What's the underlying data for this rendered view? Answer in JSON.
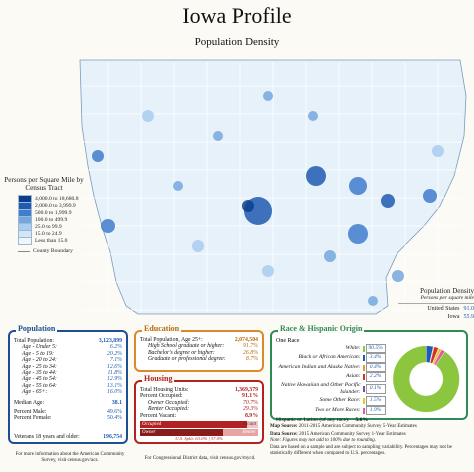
{
  "title": "Iowa Profile",
  "map_title": "Population Density",
  "legend": {
    "title": "Persons per Square Mile by Census Tract",
    "items": [
      {
        "label": "4,000.0 to 18,680.8",
        "color": "#0b3f8c"
      },
      {
        "label": "2,000.0 to 3,999.9",
        "color": "#1f5bb0"
      },
      {
        "label": "500.0 to 1,999.9",
        "color": "#3f7dcd"
      },
      {
        "label": "100.0 to 499.9",
        "color": "#74a7df"
      },
      {
        "label": "25.0 to 99.9",
        "color": "#a9cdee"
      },
      {
        "label": "15.0 to 24.9",
        "color": "#d3e6f6"
      },
      {
        "label": "Less than 15.0",
        "color": "#eef5fb"
      }
    ],
    "boundary_label": "County Boundary"
  },
  "density_summary": {
    "title": "Population Density",
    "subtitle": "Persons per square mile",
    "rows": [
      {
        "label": "United States",
        "value": "91.0"
      },
      {
        "label": "Iowa",
        "value": "55.9"
      }
    ]
  },
  "population": {
    "header": "Population",
    "total_label": "Total Population:",
    "total_value": "3,123,899",
    "rows": [
      {
        "label": "Age - Under 5:",
        "value": "6.2%"
      },
      {
        "label": "Age - 5 to 19:",
        "value": "20.2%"
      },
      {
        "label": "Age - 20 to 24:",
        "value": "7.1%"
      },
      {
        "label": "Age - 25 to 34:",
        "value": "12.6%"
      },
      {
        "label": "Age - 35 to 44:",
        "value": "11.8%"
      },
      {
        "label": "Age - 45 to 54:",
        "value": "12.9%"
      },
      {
        "label": "Age - 55 to 64:",
        "value": "13.1%"
      },
      {
        "label": "Age - 65+:",
        "value": "16.0%"
      }
    ],
    "median_label": "Median Age:",
    "median_value": "38.1",
    "male_label": "Percent Male:",
    "male_value": "49.6%",
    "female_label": "Percent Female:",
    "female_value": "50.4%",
    "veterans_label": "Veterans 18 years and older:",
    "veterans_value": "196,754"
  },
  "education": {
    "header": "Education",
    "total_label": "Total Population, Age 25+:",
    "total_value": "2,074,504",
    "rows": [
      {
        "label": "High School graduate or higher:",
        "value": "91.7%"
      },
      {
        "label": "Bachelor's degree or higher:",
        "value": "26.8%"
      },
      {
        "label": "Graduate or professional degree:",
        "value": "8.7%"
      }
    ]
  },
  "housing": {
    "header": "Housing",
    "total_label": "Total Housing Units:",
    "total_value": "1,369,379",
    "rows": [
      {
        "label": "Percent Occupied:",
        "value": "91.1%",
        "italic": false
      },
      {
        "label": "Owner Occupied:",
        "value": "70.7%",
        "italic": true
      },
      {
        "label": "Renter Occupied:",
        "value": "29.3%",
        "italic": true
      },
      {
        "label": "Percent Vacant:",
        "value": "8.9%",
        "italic": false
      }
    ],
    "bar": {
      "occupied_label": "Occupied",
      "vacant_label": "Vacant",
      "owner_label": "Owner",
      "renter_label": "Renter",
      "occupied_fraction": 0.911,
      "owner_fraction": 0.707,
      "split_text": "U.S. Split: 63.0% | 37.0%"
    }
  },
  "race": {
    "header": "Race & Hispanic Origin",
    "subheader": "One Race",
    "rows": [
      {
        "label": "White:",
        "value": "90.5%",
        "color": "#8cc63f"
      },
      {
        "label": "Black or African American:",
        "value": "3.4%",
        "color": "#1f5bb0"
      },
      {
        "label": "American Indian and Alaska Native:",
        "value": "0.4%",
        "color": "#e59b2a"
      },
      {
        "label": "Asian:",
        "value": "2.2%",
        "color": "#d0312d"
      },
      {
        "label": "Native Hawaiian and Other Pacific Islander:",
        "value": "0.1%",
        "color": "#7b4fa0"
      },
      {
        "label": "Some Other Race:",
        "value": "1.5%",
        "color": "#e5c82a"
      },
      {
        "label": "Two or More Races:",
        "value": "1.9%",
        "color": "#e05ba0"
      }
    ],
    "hispanic_label": "Hispanic or Latino (of any race):",
    "hispanic_value": "5.6%",
    "pie": [
      90.5,
      3.4,
      0.4,
      2.2,
      0.1,
      1.5,
      1.9
    ]
  },
  "footnotes": {
    "source_left": "For more information about the American Community Survey, visit census.gov/acs.",
    "source_mid": "For Congressional District data, visit census.gov/mycd.",
    "map_source_label": "Map Source:",
    "map_source": "2011-2015 American Community Survey 5-Year Estimates",
    "data_source_label": "Data Source:",
    "data_source": "2015 American Community Survey 1-Year Estimates",
    "data_note": "Note: Figures may not add to 100% due to rounding.",
    "disclaimer": "Data are based on a sample and are subject to sampling variability. Percentages may not be statistically different when compared to U.S. percentages."
  }
}
